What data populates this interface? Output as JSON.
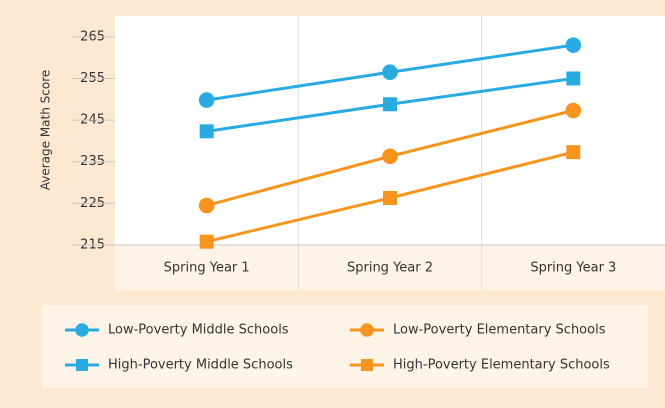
{
  "chart_data": {
    "type": "line",
    "y_label": "Average Math Score",
    "categories": [
      "Spring Year 1",
      "Spring Year 2",
      "Spring Year 3"
    ],
    "ylim": [
      215,
      270
    ],
    "yticks": [
      215,
      225,
      235,
      245,
      255,
      265
    ],
    "grid": true,
    "series": [
      {
        "name": "Low-Poverty Middle Schools",
        "color": "#29abe2",
        "marker": "circle",
        "values": [
          249.8,
          256.5,
          263
        ]
      },
      {
        "name": "Low-Poverty Elementary Schools",
        "color": "#f7941d",
        "marker": "circle",
        "values": [
          224.5,
          236.3,
          247.3
        ]
      },
      {
        "name": "High-Poverty Middle Schools",
        "color": "#29abe2",
        "marker": "square",
        "values": [
          242.3,
          248.8,
          255
        ]
      },
      {
        "name": "High-Poverty Elementary Schools",
        "color": "#f7941d",
        "marker": "square",
        "values": [
          215.8,
          226.3,
          237.3
        ]
      }
    ]
  }
}
